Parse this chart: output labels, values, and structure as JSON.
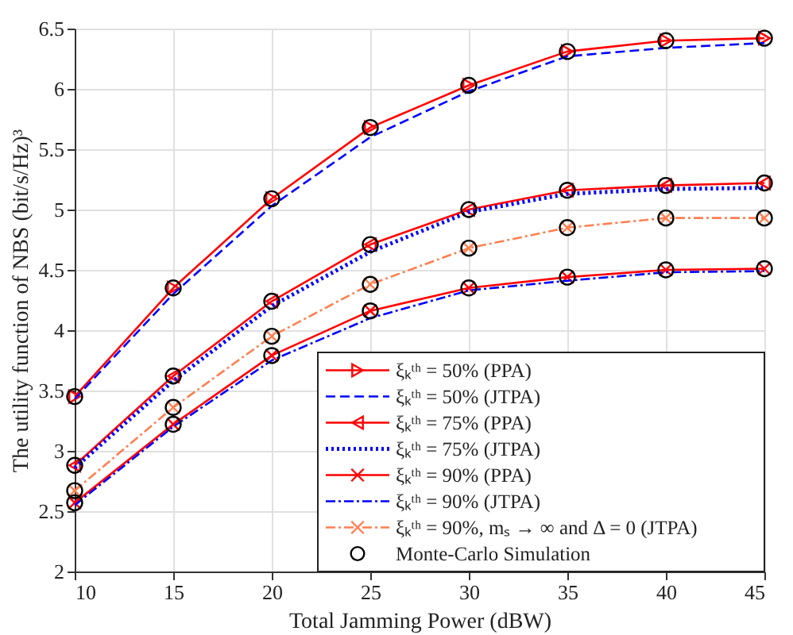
{
  "chart_data": {
    "type": "line",
    "xlabel": "Total Jamming Power (dBW)",
    "ylabel": "The utility function of NBS (bit/s/Hz)³",
    "x": [
      10,
      15,
      20,
      25,
      30,
      35,
      40,
      45
    ],
    "xlim": [
      10,
      45
    ],
    "xticks": [
      10,
      15,
      20,
      25,
      30,
      35,
      40,
      45
    ],
    "ylim": [
      2,
      6.5
    ],
    "yticks": [
      2,
      2.5,
      3,
      3.5,
      4,
      4.5,
      5,
      5.5,
      6,
      6.5
    ],
    "grid": true,
    "legend": "bottom right",
    "series": [
      {
        "name": "ξₖᵗʰ = 50% (PPA)",
        "color": "#ff0000",
        "marker": "triangle-right",
        "line_style": "solid",
        "values": [
          3.45,
          4.35,
          5.09,
          5.68,
          6.03,
          6.31,
          6.4,
          6.42
        ]
      },
      {
        "name": "ξₖᵗʰ = 50% (JTPA)",
        "color": "#0000ff",
        "marker": "none",
        "line_style": "dashed",
        "values": [
          3.43,
          4.3,
          5.03,
          5.6,
          5.98,
          6.27,
          6.34,
          6.38
        ]
      },
      {
        "name": "ξₖᵗʰ = 75% (PPA)",
        "color": "#ff0000",
        "marker": "triangle-left",
        "line_style": "solid",
        "values": [
          2.88,
          3.62,
          4.24,
          4.71,
          5.0,
          5.16,
          5.2,
          5.22
        ]
      },
      {
        "name": "ξₖᵗʰ = 75% (JTPA)",
        "color": "#0000ff",
        "marker": "none",
        "line_style": "dotted",
        "values": [
          2.86,
          3.58,
          4.2,
          4.65,
          4.98,
          5.13,
          5.17,
          5.18
        ]
      },
      {
        "name": "ξₖᵗʰ = 90% (PPA)",
        "color": "#ff0000",
        "marker": "cross",
        "line_style": "solid",
        "values": [
          2.57,
          3.22,
          3.79,
          4.16,
          4.35,
          4.44,
          4.5,
          4.51
        ]
      },
      {
        "name": "ξₖᵗʰ = 90% (JTPA)",
        "color": "#0000ff",
        "marker": "none",
        "line_style": "dashdot",
        "values": [
          2.55,
          3.2,
          3.75,
          4.1,
          4.33,
          4.41,
          4.48,
          4.49
        ]
      },
      {
        "name": "ξₖᵗʰ = 90%, mₛ → ∞ and Δ = 0 (JTPA)",
        "color": "#ff7f50",
        "marker": "cross",
        "line_style": "dashdot",
        "values": [
          2.67,
          3.36,
          3.95,
          4.38,
          4.68,
          4.85,
          4.93,
          4.93
        ]
      },
      {
        "name": "Monte-Carlo Simulation",
        "type": "scatter",
        "color": "#000000",
        "marker": "circle",
        "x": [
          10,
          15,
          20,
          25,
          30,
          35,
          40,
          45,
          10,
          15,
          20,
          25,
          30,
          35,
          40,
          45,
          10,
          15,
          20,
          25,
          30,
          35,
          40,
          45,
          10,
          15,
          20,
          25,
          30,
          35,
          40,
          45
        ],
        "values": [
          3.45,
          4.35,
          5.09,
          5.68,
          6.03,
          6.31,
          6.4,
          6.42,
          2.88,
          3.62,
          4.24,
          4.71,
          5.0,
          5.16,
          5.2,
          5.22,
          2.57,
          3.22,
          3.79,
          4.16,
          4.35,
          4.44,
          4.5,
          4.51,
          2.67,
          3.36,
          3.95,
          4.38,
          4.68,
          4.85,
          4.93,
          4.93
        ]
      }
    ]
  }
}
